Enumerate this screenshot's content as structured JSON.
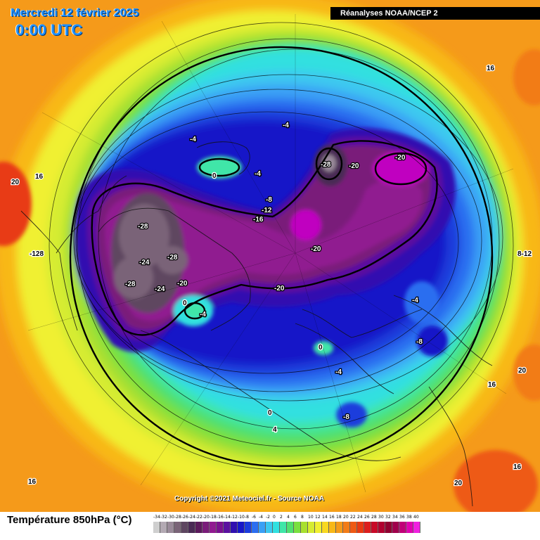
{
  "header": {
    "date": "Mercredi 12 février 2025",
    "time": "0:00 UTC",
    "source": "Réanalyses NOAA/NCEP 2"
  },
  "copyright": "Copyright ©2021 Meteociel.fr - Source NOAA",
  "legend": {
    "title": "Température 850hPa (°C)",
    "ticks": [
      "-34",
      "-32",
      "-30",
      "-28",
      "-26",
      "-24",
      "-22",
      "-20",
      "-18",
      "-16",
      "-14",
      "-12",
      "-10",
      "-8",
      "-6",
      "-4",
      "-2",
      "0",
      "2",
      "4",
      "6",
      "8",
      "10",
      "12",
      "14",
      "16",
      "18",
      "20",
      "22",
      "24",
      "26",
      "28",
      "30",
      "32",
      "34",
      "36",
      "38",
      "40"
    ],
    "colors": [
      "#cfcfcf",
      "#b3a9b3",
      "#9a8a9a",
      "#7a6478",
      "#5e4660",
      "#4a2a55",
      "#5b1a5c",
      "#7a1c7a",
      "#901a90",
      "#7a1090",
      "#5a10a0",
      "#3010b0",
      "#1818c8",
      "#1c3cdc",
      "#2b6ef0",
      "#3aa0f5",
      "#3cc8f0",
      "#30e0e0",
      "#40e6a8",
      "#50e070",
      "#7ae040",
      "#a8e030",
      "#d6ec30",
      "#f0f030",
      "#f8d820",
      "#f8b818",
      "#f59a1a",
      "#f27c18",
      "#ee5a14",
      "#e83a12",
      "#dc1e1e",
      "#c80a28",
      "#b00030",
      "#900030",
      "#a0004c",
      "#c00078",
      "#e000b0",
      "#f020e0"
    ]
  },
  "map_labels": [
    "16",
    "20",
    "16",
    "-4",
    "-4",
    "0",
    "-4",
    "-28",
    "-20",
    "-20",
    "-8",
    "-12",
    "-16",
    "-28",
    "-24",
    "-28",
    "-28",
    "-24",
    "-20",
    "-20",
    "-20",
    "0",
    "-4",
    "-4",
    "-8",
    "0",
    "-4",
    "-8",
    "0",
    "4",
    "8-12",
    "20",
    "16",
    "16",
    "20",
    "16",
    "-128"
  ]
}
